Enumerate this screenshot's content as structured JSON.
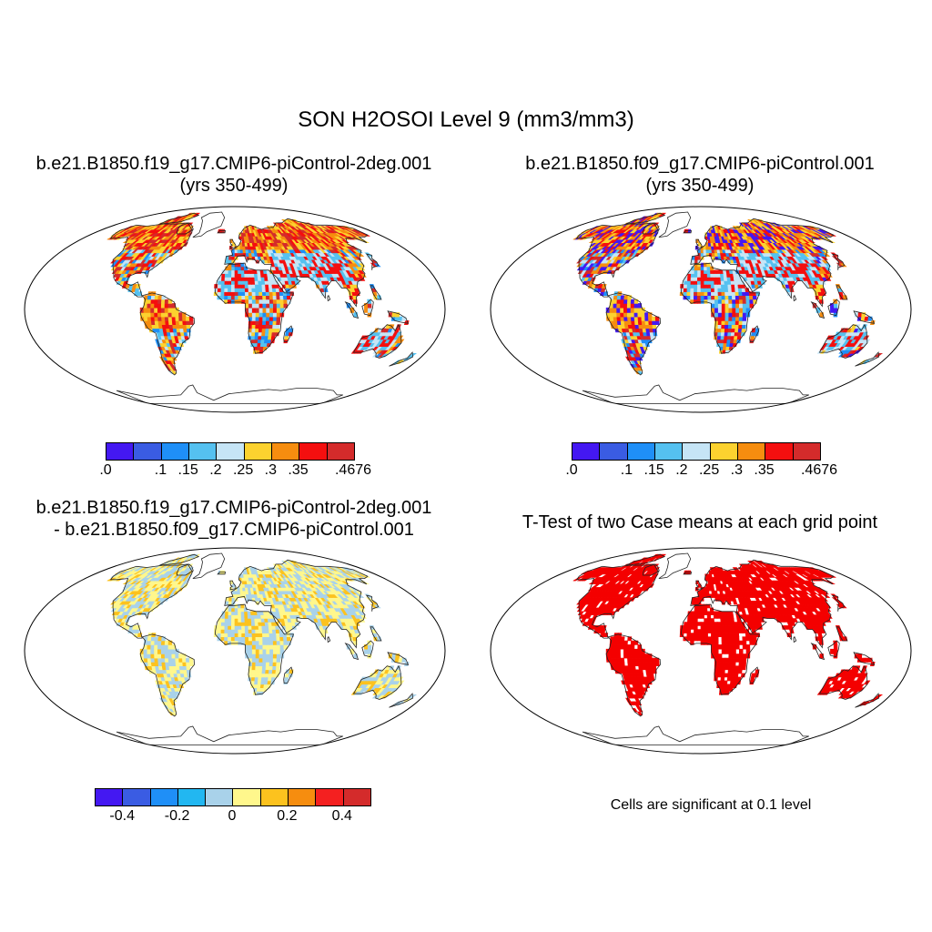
{
  "title": "SON H2OSOI Level 9 (mm3/mm3)",
  "panels": [
    {
      "title_line1": "b.e21.B1850.f19_g17.CMIP6-piControl-2deg.001",
      "title_line2": "(yrs 350-499)"
    },
    {
      "title_line1": "b.e21.B1850.f09_g17.CMIP6-piControl.001",
      "title_line2": "(yrs 350-499)"
    },
    {
      "title_line1": "b.e21.B1850.f19_g17.CMIP6-piControl-2deg.001",
      "title_line2": "- b.e21.B1850.f09_g17.CMIP6-piControl.001"
    },
    {
      "title_line1": "T-Test of two Case means at each grid point",
      "note": "Cells are significant at 0.1 level"
    }
  ],
  "colorbar_values": {
    "colors": [
      "#4418f2",
      "#3a5ce3",
      "#1f8ff7",
      "#55c1f0",
      "#c6e5f6",
      "#fcd22f",
      "#f68d0f",
      "#f40f0f",
      "#d42b2b"
    ],
    "tick_labels": [
      ".0",
      ".1",
      ".15",
      ".2",
      ".25",
      ".3",
      ".35",
      ".4676"
    ]
  },
  "colorbar_diff": {
    "colors": [
      "#4418f2",
      "#3a5ce3",
      "#1f8ff7",
      "#22b7f1",
      "#a9d2ea",
      "#fff78c",
      "#fcc21e",
      "#f68d0f",
      "#f42020",
      "#d42b2b"
    ],
    "tick_labels": [
      "-0.4",
      "-0.2",
      "0",
      "0.2",
      "0.4"
    ]
  },
  "significance_color": "#f40000",
  "land_palettes": {
    "values_2deg": [
      "#f68d0f",
      "#fcd22f",
      "#c6e5f6",
      "#55c1f0",
      "#f40f0f",
      "#d42b2b",
      "#1f8ff7"
    ],
    "values_1deg": [
      "#f68d0f",
      "#fcd22f",
      "#c6e5f6",
      "#55c1f0",
      "#f40f0f",
      "#4418f2",
      "#1f8ff7",
      "#d42b2b"
    ],
    "difference": [
      "#fff78c",
      "#a9d2ea",
      "#fff78c",
      "#a9d2ea",
      "#fcc21e"
    ]
  }
}
